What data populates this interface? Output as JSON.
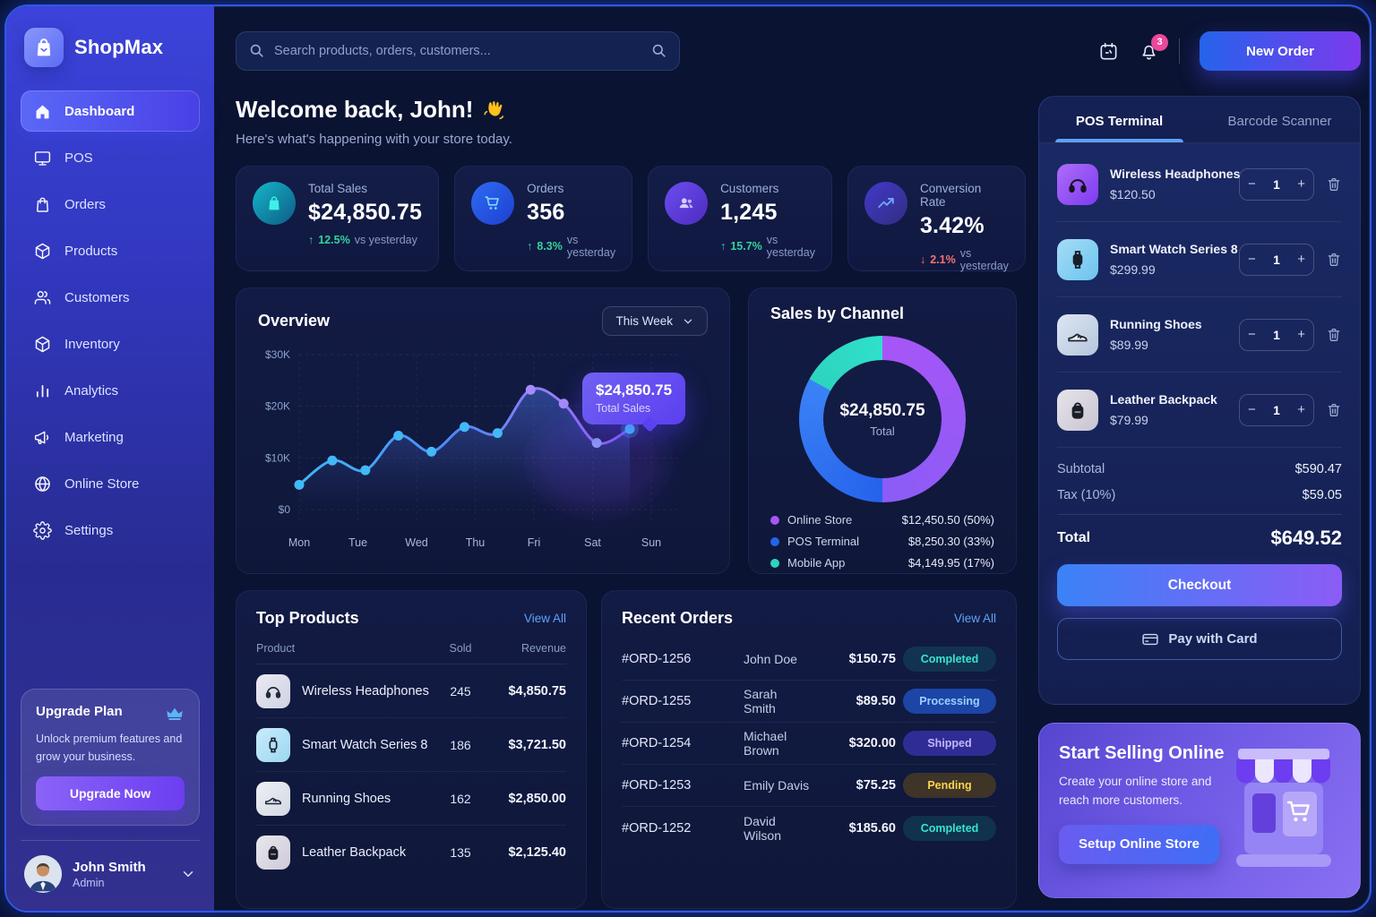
{
  "app": {
    "name": "ShopMax"
  },
  "colors": {
    "accent_blue": "#2563eb",
    "accent_purple": "#7c3aed",
    "positive": "#34d399",
    "negative": "#f87171",
    "link": "#5ea2f8",
    "badge_completed": "#2dd4bf",
    "badge_processing": "#60a5fa",
    "badge_shipped": "#c4b5fd",
    "badge_pending": "#fbbf24",
    "notification_badge": "#ec4899"
  },
  "sidebar": {
    "items": [
      {
        "label": "Dashboard",
        "icon": "home-icon",
        "active": true
      },
      {
        "label": "POS",
        "icon": "monitor-icon",
        "active": false
      },
      {
        "label": "Orders",
        "icon": "shopping-bag-icon",
        "active": false
      },
      {
        "label": "Products",
        "icon": "cube-icon",
        "active": false
      },
      {
        "label": "Customers",
        "icon": "users-icon",
        "active": false
      },
      {
        "label": "Inventory",
        "icon": "box-icon",
        "active": false
      },
      {
        "label": "Analytics",
        "icon": "bar-chart-icon",
        "active": false
      },
      {
        "label": "Marketing",
        "icon": "megaphone-icon",
        "active": false
      },
      {
        "label": "Online Store",
        "icon": "globe-icon",
        "active": false
      },
      {
        "label": "Settings",
        "icon": "gear-icon",
        "active": false
      }
    ],
    "upgrade": {
      "title": "Upgrade Plan",
      "icon": "crown-icon",
      "text": "Unlock premium features and grow your business.",
      "button_label": "Upgrade Now"
    },
    "user": {
      "name": "John Smith",
      "role": "Admin"
    }
  },
  "topbar": {
    "search_placeholder": "Search products, orders, customers...",
    "notification_count": "3",
    "new_order_label": "New Order"
  },
  "welcome": {
    "title": "Welcome back, John!",
    "wave_emoji": "👋",
    "subtitle": "Here's what's happening with your store today."
  },
  "stats": [
    {
      "label": "Total Sales",
      "value": "$24,850.75",
      "change": "12.5%",
      "direction": "up",
      "compare": "vs yesterday",
      "icon": "shopping-bag-icon"
    },
    {
      "label": "Orders",
      "value": "356",
      "change": "8.3%",
      "direction": "up",
      "compare": "vs yesterday",
      "icon": "cart-icon"
    },
    {
      "label": "Customers",
      "value": "1,245",
      "change": "15.7%",
      "direction": "up",
      "compare": "vs yesterday",
      "icon": "users-icon"
    },
    {
      "label": "Conversion Rate",
      "value": "3.42%",
      "change": "2.1%",
      "direction": "down",
      "compare": "vs yesterday",
      "icon": "trend-up-icon"
    }
  ],
  "chart_data": [
    {
      "type": "line",
      "title": "Overview",
      "range_selector": "This Week",
      "series_name": "Total Sales",
      "x_labels": [
        "Mon",
        "Tue",
        "Wed",
        "Thu",
        "Fri",
        "Sat",
        "Sun"
      ],
      "y_ticks": [
        "$0",
        "$10K",
        "$20K",
        "$30K"
      ],
      "ylim_k": [
        0,
        30
      ],
      "values_k": [
        4.8,
        9.5,
        7.6,
        14.3,
        11.2,
        16.0,
        14.8,
        23.2,
        20.5,
        12.9,
        15.6
      ],
      "grid": true,
      "line_colors": [
        "#3eb7f5",
        "#8b5cf6"
      ],
      "tooltip": {
        "value": "$24,850.75",
        "label": "Total Sales"
      }
    },
    {
      "type": "pie",
      "title": "Sales by Channel",
      "center_value": "$24,850.75",
      "center_label": "Total",
      "legend_position": "bottom",
      "segments": [
        {
          "label": "Online Store",
          "amount": "$12,450.50",
          "percent": 50,
          "display": "$12,450.50 (50%)",
          "color": "#a855f7",
          "color2": "#8b5cf6"
        },
        {
          "label": "POS Terminal",
          "amount": "$8,250.30",
          "percent": 33,
          "display": "$8,250.30 (33%)",
          "color": "#2563eb",
          "color2": "#3b82f6"
        },
        {
          "label": "Mobile App",
          "amount": "$4,149.95",
          "percent": 17,
          "display": "$4,149.95 (17%)",
          "color": "#2dd4bf",
          "color2": "#2fe0cb"
        }
      ]
    }
  ],
  "top_products": {
    "title": "Top Products",
    "view_all_label": "View All",
    "headers": [
      "Product",
      "Sold",
      "Revenue"
    ],
    "rows": [
      {
        "name": "Wireless Headphones",
        "sold": "245",
        "revenue": "$4,850.75"
      },
      {
        "name": "Smart Watch Series 8",
        "sold": "186",
        "revenue": "$3,721.50"
      },
      {
        "name": "Running Shoes",
        "sold": "162",
        "revenue": "$2,850.00"
      },
      {
        "name": "Leather Backpack",
        "sold": "135",
        "revenue": "$2,125.40"
      }
    ]
  },
  "recent_orders": {
    "title": "Recent Orders",
    "view_all_label": "View All",
    "rows": [
      {
        "id": "#ORD-1256",
        "customer": "John Doe",
        "amount": "$150.75",
        "status": "Completed",
        "status_type": "completed"
      },
      {
        "id": "#ORD-1255",
        "customer": "Sarah Smith",
        "amount": "$89.50",
        "status": "Processing",
        "status_type": "processing"
      },
      {
        "id": "#ORD-1254",
        "customer": "Michael Brown",
        "amount": "$320.00",
        "status": "Shipped",
        "status_type": "shipped"
      },
      {
        "id": "#ORD-1253",
        "customer": "Emily Davis",
        "amount": "$75.25",
        "status": "Pending",
        "status_type": "pending"
      },
      {
        "id": "#ORD-1252",
        "customer": "David Wilson",
        "amount": "$185.60",
        "status": "Completed",
        "status_type": "completed"
      }
    ]
  },
  "pos_panel": {
    "tabs": [
      {
        "label": "POS Terminal",
        "active": true
      },
      {
        "label": "Barcode Scanner",
        "active": false
      }
    ],
    "items": [
      {
        "name": "Wireless Headphones",
        "price": "$120.50",
        "qty": "1"
      },
      {
        "name": "Smart Watch Series 8",
        "price": "$299.99",
        "qty": "1"
      },
      {
        "name": "Running Shoes",
        "price": "$89.99",
        "qty": "1"
      },
      {
        "name": "Leather Backpack",
        "price": "$79.99",
        "qty": "1"
      }
    ],
    "subtotal_label": "Subtotal",
    "subtotal_value": "$590.47",
    "tax_label": "Tax (10%)",
    "tax_value": "$59.05",
    "total_label": "Total",
    "total_value": "$649.52",
    "checkout_label": "Checkout",
    "pay_card_label": "Pay with Card"
  },
  "promo": {
    "title": "Start Selling Online",
    "text": "Create your online store and reach more customers.",
    "button_label": "Setup Online Store"
  }
}
